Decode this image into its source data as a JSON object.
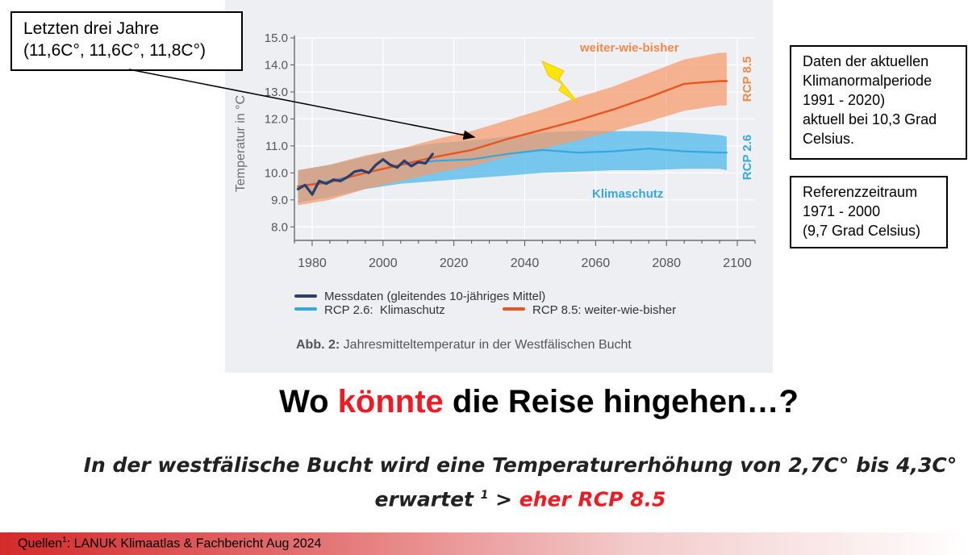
{
  "chart_data": {
    "type": "line",
    "ylabel": "Temperatur in °C",
    "xlim": [
      1975,
      2105
    ],
    "ylim": [
      7.5,
      15.0
    ],
    "x_ticks": [
      1980,
      2000,
      2020,
      2040,
      2060,
      2080,
      2100
    ],
    "y_ticks": [
      8.0,
      9.0,
      10.0,
      11.0,
      12.0,
      13.0,
      14.0,
      15.0
    ],
    "y_tick_labels": [
      "8.0",
      "9.0",
      "10.0",
      "11.0",
      "12.0",
      "13.0",
      "14.0",
      "15.0"
    ],
    "grid": true,
    "series": [
      {
        "name": "Messdaten (gleitendes 10-jähriges Mittel)",
        "color": "#2b3f6f",
        "x": [
          1976,
          1978,
          1980,
          1982,
          1984,
          1986,
          1988,
          1990,
          1992,
          1994,
          1996,
          1998,
          2000,
          2002,
          2004,
          2006,
          2008,
          2010,
          2012,
          2014
        ],
        "y": [
          9.4,
          9.55,
          9.2,
          9.7,
          9.6,
          9.75,
          9.7,
          9.85,
          10.05,
          10.1,
          10.0,
          10.3,
          10.5,
          10.3,
          10.2,
          10.45,
          10.25,
          10.4,
          10.35,
          10.7
        ]
      },
      {
        "name": "RCP 2.6:  Klimaschutz",
        "color": "#35a8e0",
        "x": [
          1976,
          1985,
          1995,
          2005,
          2015,
          2025,
          2035,
          2045,
          2055,
          2065,
          2075,
          2085,
          2095,
          2097
        ],
        "y": [
          9.5,
          9.7,
          10.0,
          10.3,
          10.45,
          10.5,
          10.7,
          10.85,
          10.75,
          10.8,
          10.9,
          10.8,
          10.75,
          10.75
        ],
        "band_low": [
          8.9,
          9.1,
          9.4,
          9.6,
          9.7,
          9.8,
          9.9,
          10.0,
          10.05,
          10.1,
          10.1,
          10.15,
          10.15,
          10.1
        ],
        "band_high": [
          10.1,
          10.3,
          10.6,
          10.9,
          11.1,
          11.2,
          11.35,
          11.5,
          11.55,
          11.55,
          11.55,
          11.5,
          11.4,
          11.35
        ]
      },
      {
        "name": "RCP 8.5: weiter-wie-bisher",
        "color": "#e8561f",
        "x": [
          1976,
          1985,
          1995,
          2005,
          2015,
          2025,
          2035,
          2045,
          2055,
          2065,
          2075,
          2085,
          2095,
          2097
        ],
        "y": [
          9.5,
          9.65,
          10.0,
          10.3,
          10.6,
          10.85,
          11.25,
          11.6,
          11.95,
          12.35,
          12.8,
          13.3,
          13.4,
          13.4
        ],
        "band_low": [
          8.8,
          9.0,
          9.4,
          9.7,
          10.0,
          10.25,
          10.6,
          10.9,
          11.2,
          11.55,
          11.9,
          12.3,
          12.5,
          12.5
        ],
        "band_high": [
          10.1,
          10.3,
          10.65,
          10.9,
          11.25,
          11.55,
          11.95,
          12.35,
          12.8,
          13.2,
          13.7,
          14.2,
          14.45,
          14.45
        ]
      }
    ],
    "annotations": {
      "weiter": "weiter-wie-bisher",
      "klimaschutz": "Klimaschutz",
      "rcp85": "RCP 8.5",
      "rcp26": "RCP 2.6"
    },
    "caption_bold": "Abb. 2:",
    "caption_rest": " Jahresmitteltemperatur in der Westfälischen Bucht",
    "legend_placement": "bottom"
  },
  "callouts": {
    "main": [
      "Letzten drei Jahre",
      "(11,6C°, 11,6C°, 11,8C°)"
    ],
    "normal": [
      "Daten der aktuellen",
      "Klimanormalperiode",
      "1991 - 2020)",
      "aktuell bei 10,3 Grad",
      "Celsius."
    ],
    "reference": [
      "Referenzzeitraum",
      "1971 - 2000",
      "(9,7 Grad Celsius)"
    ]
  },
  "headline": {
    "part1": "Wo ",
    "highlight": "könnte",
    "part2": " die Reise hingehen…?"
  },
  "subline": {
    "line1": "In der westfälische Bucht wird eine Temperaturerhöhung von 2,7C° bis 4,3C°",
    "line2_start": "erwartet ",
    "line2_sup": "1",
    "line2_mid": " > ",
    "line2_red": "eher RCP 8.5"
  },
  "footer": {
    "prefix": "Quellen",
    "sup": "1",
    "rest": ": LANUK Klimaatlas & Fachbericht Aug 2024"
  },
  "colors": {
    "accent_red": "#ec1c24",
    "rcp85": "#e8561f",
    "rcp26": "#35a8e0",
    "measured": "#2b3f6f",
    "lightning": "#ffe600"
  },
  "icons": {
    "lightning": "lightning-bolt-icon"
  }
}
